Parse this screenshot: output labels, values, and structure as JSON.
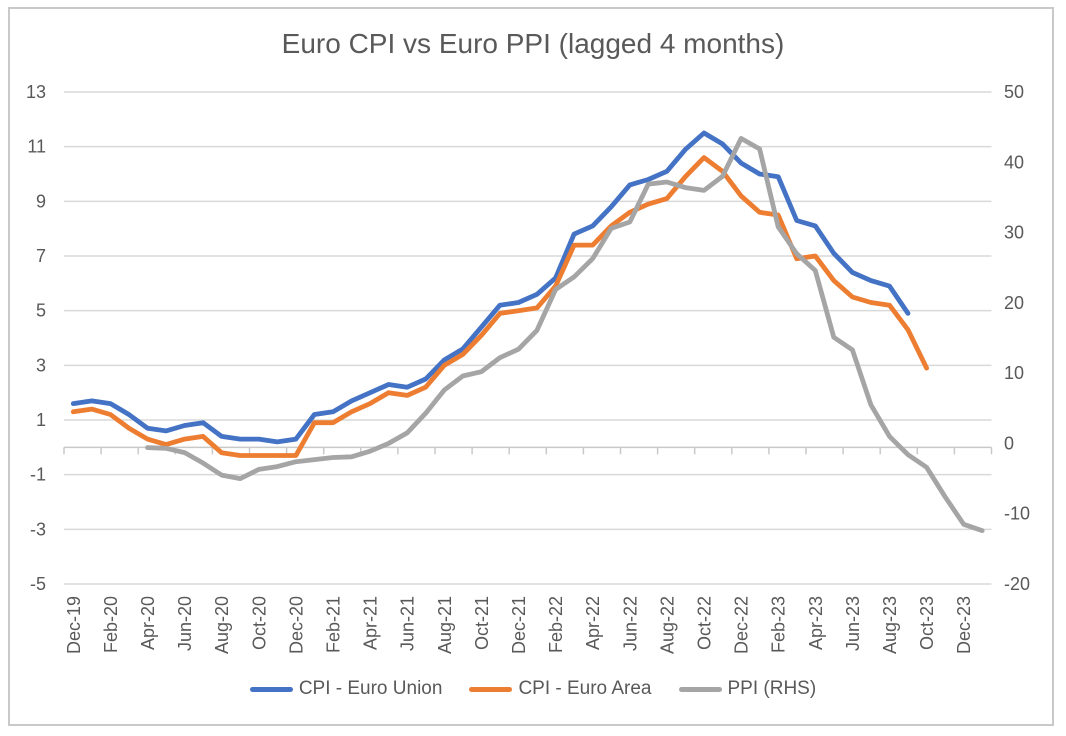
{
  "window": {
    "background": "#ffffff",
    "frame_border_color": "#c9c9c9"
  },
  "chart_data": {
    "type": "line",
    "title": "Euro CPI vs Euro PPI (lagged 4 months)",
    "title_color": "#595959",
    "label_color": "#595959",
    "gridline_color": "#d9d9d9",
    "axis_line_color": "#c9c9c9",
    "grid": "horizontal-only",
    "legend_position": "bottom-center",
    "categories": [
      "Dec-19",
      "Jan-20",
      "Feb-20",
      "Mar-20",
      "Apr-20",
      "May-20",
      "Jun-20",
      "Jul-20",
      "Aug-20",
      "Sep-20",
      "Oct-20",
      "Nov-20",
      "Dec-20",
      "Jan-21",
      "Feb-21",
      "Mar-21",
      "Apr-21",
      "May-21",
      "Jun-21",
      "Jul-21",
      "Aug-21",
      "Sep-21",
      "Oct-21",
      "Nov-21",
      "Dec-21",
      "Jan-22",
      "Feb-22",
      "Mar-22",
      "Apr-22",
      "May-22",
      "Jun-22",
      "Jul-22",
      "Aug-22",
      "Sep-22",
      "Oct-22",
      "Nov-22",
      "Dec-22",
      "Jan-23",
      "Feb-23",
      "Mar-23",
      "Apr-23",
      "May-23",
      "Jun-23",
      "Jul-23",
      "Aug-23",
      "Sep-23",
      "Oct-23",
      "Nov-23",
      "Dec-23",
      "Jan-24"
    ],
    "x_label_every": 2,
    "x_labels_shown": [
      "Dec-19",
      "Feb-20",
      "Apr-20",
      "Jun-20",
      "Aug-20",
      "Oct-20",
      "Dec-20",
      "Feb-21",
      "Apr-21",
      "Jun-21",
      "Aug-21",
      "Oct-21",
      "Dec-21",
      "Feb-22",
      "Apr-22",
      "Jun-22",
      "Aug-22",
      "Oct-22",
      "Dec-22",
      "Feb-23",
      "Apr-23",
      "Jun-23",
      "Aug-23",
      "Oct-23",
      "Dec-23"
    ],
    "left_axis": {
      "min": -5,
      "max": 13,
      "ticks": [
        13,
        11,
        9,
        7,
        5,
        3,
        1,
        -1,
        -3,
        -5
      ]
    },
    "right_axis": {
      "min": -20,
      "max": 50,
      "ticks": [
        50,
        40,
        30,
        20,
        10,
        0,
        -10,
        -20
      ]
    },
    "series": [
      {
        "name": "CPI - Euro Union",
        "color": "#4472C4",
        "axis": "left",
        "values": [
          1.6,
          1.7,
          1.6,
          1.2,
          0.7,
          0.6,
          0.8,
          0.9,
          0.4,
          0.3,
          0.3,
          0.2,
          0.3,
          1.2,
          1.3,
          1.7,
          2.0,
          2.3,
          2.2,
          2.5,
          3.2,
          3.6,
          4.4,
          5.2,
          5.3,
          5.6,
          6.2,
          7.8,
          8.1,
          8.8,
          9.6,
          9.8,
          10.1,
          10.9,
          11.5,
          11.1,
          10.4,
          10.0,
          9.9,
          8.3,
          8.1,
          7.1,
          6.4,
          6.1,
          5.9,
          4.9,
          null,
          null,
          null,
          null
        ]
      },
      {
        "name": "CPI - Euro Area",
        "color": "#ED7D31",
        "axis": "left",
        "values": [
          1.3,
          1.4,
          1.2,
          0.7,
          0.3,
          0.1,
          0.3,
          0.4,
          -0.2,
          -0.3,
          -0.3,
          -0.3,
          -0.3,
          0.9,
          0.9,
          1.3,
          1.6,
          2.0,
          1.9,
          2.2,
          3.0,
          3.4,
          4.1,
          4.9,
          5.0,
          5.1,
          5.9,
          7.4,
          7.4,
          8.1,
          8.6,
          8.9,
          9.1,
          9.9,
          10.6,
          10.1,
          9.2,
          8.6,
          8.5,
          6.9,
          7.0,
          6.1,
          5.5,
          5.3,
          5.2,
          4.3,
          2.9,
          null,
          null,
          null
        ]
      },
      {
        "name": "PPI (RHS)",
        "color": "#A5A5A5",
        "axis": "right",
        "values": [
          null,
          null,
          null,
          null,
          -0.6,
          -0.7,
          -1.3,
          -2.8,
          -4.5,
          -5.0,
          -3.7,
          -3.3,
          -2.6,
          -2.3,
          -2.0,
          -1.9,
          -1.1,
          0.0,
          1.5,
          4.3,
          7.6,
          9.6,
          10.2,
          12.2,
          13.4,
          16.1,
          21.9,
          23.7,
          26.3,
          30.6,
          31.5,
          36.9,
          37.2,
          36.4,
          36.0,
          38.0,
          43.4,
          41.9,
          30.8,
          27.0,
          24.6,
          15.1,
          13.3,
          5.5,
          1.0,
          -1.6,
          -3.4,
          -7.6,
          -11.5,
          -12.4
        ]
      }
    ]
  }
}
